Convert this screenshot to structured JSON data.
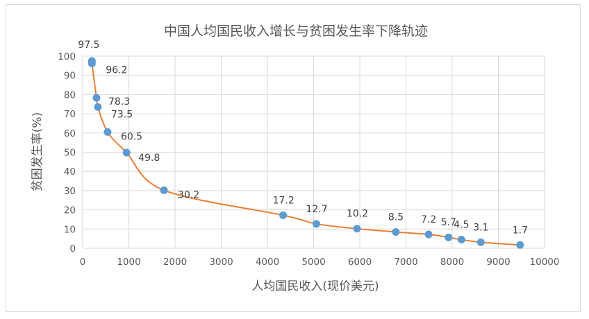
{
  "chart_data": {
    "type": "scatter",
    "title": "中国人均国民收入增长与贫困发生率下降轨迹",
    "xlabel": "人均国民收入(现价美元)",
    "ylabel": "贫困发生率(%)",
    "xlim": [
      0,
      10000
    ],
    "ylim": [
      0,
      100
    ],
    "xticks": [
      0,
      1000,
      2000,
      3000,
      4000,
      5000,
      6000,
      7000,
      8000,
      9000,
      10000
    ],
    "yticks": [
      0,
      10,
      20,
      30,
      40,
      50,
      60,
      70,
      80,
      90,
      100
    ],
    "grid": true,
    "legend": "none",
    "line_style": "smoothed",
    "colors": {
      "marker": "#5b9bd5",
      "line": "#ed7d31",
      "grid": "#d9d9d9",
      "text": "#595959"
    },
    "points": [
      {
        "x": 200,
        "y": 97.5,
        "label": "97.5"
      },
      {
        "x": 200,
        "y": 96.2,
        "label": "96.2"
      },
      {
        "x": 300,
        "y": 78.3,
        "label": "78.3"
      },
      {
        "x": 330,
        "y": 73.5,
        "label": "73.5"
      },
      {
        "x": 540,
        "y": 60.5,
        "label": "60.5"
      },
      {
        "x": 950,
        "y": 49.8,
        "label": "49.8"
      },
      {
        "x": 1760,
        "y": 30.2,
        "label": "30.2"
      },
      {
        "x": 4340,
        "y": 17.2,
        "label": "17.2"
      },
      {
        "x": 5060,
        "y": 12.7,
        "label": "12.7"
      },
      {
        "x": 5940,
        "y": 10.2,
        "label": "10.2"
      },
      {
        "x": 6780,
        "y": 8.5,
        "label": "8.5"
      },
      {
        "x": 7490,
        "y": 7.2,
        "label": "7.2"
      },
      {
        "x": 7920,
        "y": 5.7,
        "label": "5.7"
      },
      {
        "x": 8200,
        "y": 4.5,
        "label": "4.5"
      },
      {
        "x": 8620,
        "y": 3.1,
        "label": "3.1"
      },
      {
        "x": 9470,
        "y": 1.7,
        "label": "1.7"
      }
    ]
  }
}
